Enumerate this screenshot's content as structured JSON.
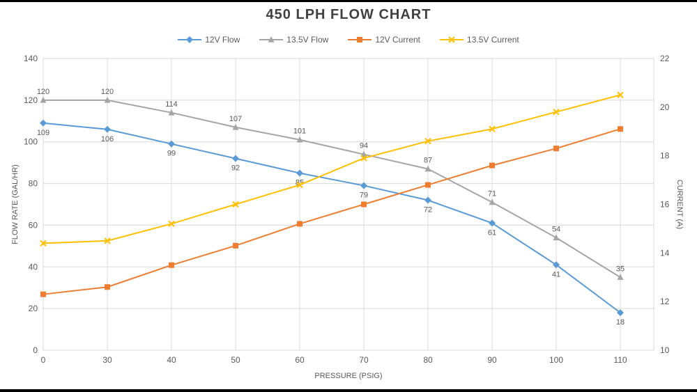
{
  "chart_data": {
    "type": "line",
    "title": "450 LPH FLOW CHART",
    "xlabel": "PRESSURE (PSIG)",
    "ylabel_left": "FLOW RATE (GAL/HR)",
    "ylabel_right": "CURRENT (A)",
    "grid": true,
    "legend_position": "top",
    "categories": [
      "0",
      "30",
      "40",
      "50",
      "60",
      "70",
      "80",
      "90",
      "100",
      "110"
    ],
    "left_axis": {
      "min": 0,
      "max": 140,
      "step": 20
    },
    "right_axis": {
      "min": 10,
      "max": 22,
      "step": 2
    },
    "series": [
      {
        "name": "12V Flow",
        "axis": "left",
        "color": "#5B9BD5",
        "marker": "diamond",
        "values": [
          109,
          106,
          99,
          92,
          85,
          79,
          72,
          61,
          41,
          18
        ],
        "show_labels": true,
        "label_pos": "below"
      },
      {
        "name": "13.5V Flow",
        "axis": "left",
        "color": "#A5A5A5",
        "marker": "triangle",
        "values": [
          120,
          120,
          114,
          107,
          101,
          94,
          87,
          71,
          54,
          35
        ],
        "show_labels": true,
        "label_pos": "above"
      },
      {
        "name": "12V Current",
        "axis": "right",
        "color": "#ED7D31",
        "marker": "square",
        "values": [
          12.3,
          12.6,
          13.5,
          14.3,
          15.2,
          16.0,
          16.8,
          17.6,
          18.3,
          19.1
        ],
        "show_labels": false,
        "label_pos": "above"
      },
      {
        "name": "13.5V Current",
        "axis": "right",
        "color": "#FFC000",
        "marker": "x",
        "values": [
          14.4,
          14.5,
          15.2,
          16.0,
          16.8,
          17.9,
          18.6,
          19.1,
          19.8,
          20.5
        ],
        "show_labels": false,
        "label_pos": "above"
      }
    ],
    "colors": {
      "gridline": "#D9D9D9",
      "axis_text": "#595959",
      "title_text": "#404040",
      "data_label": "#595959"
    }
  }
}
